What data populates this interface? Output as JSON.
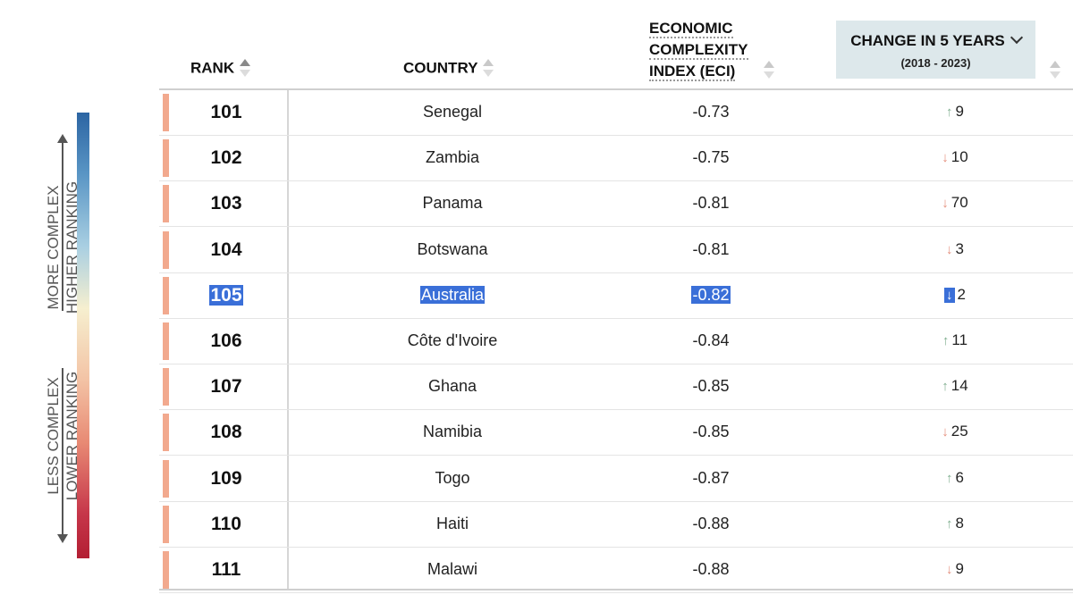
{
  "legend": {
    "top_line1": "MORE COMPLEX",
    "top_line2": "HIGHER RANKING",
    "bottom_line1": "LESS COMPLEX",
    "bottom_line2": "LOWER RANKING"
  },
  "headers": {
    "rank": "RANK",
    "country": "COUNTRY",
    "eci_line1": "ECONOMIC",
    "eci_line2": "COMPLEXITY",
    "eci_line3": "INDEX (ECI)",
    "change_title": "CHANGE IN 5 YEARS",
    "change_sub": "(2018 - 2023)"
  },
  "rows": [
    {
      "rank": "101",
      "country": "Senegal",
      "eci": "-0.73",
      "direction": "up",
      "change": "9"
    },
    {
      "rank": "102",
      "country": "Zambia",
      "eci": "-0.75",
      "direction": "down",
      "change": "10"
    },
    {
      "rank": "103",
      "country": "Panama",
      "eci": "-0.81",
      "direction": "down",
      "change": "70"
    },
    {
      "rank": "104",
      "country": "Botswana",
      "eci": "-0.81",
      "direction": "down",
      "change": "3"
    },
    {
      "rank": "105",
      "country": "Australia",
      "eci": "-0.82",
      "direction": "down",
      "change": "2"
    },
    {
      "rank": "106",
      "country": "Côte d'Ivoire",
      "eci": "-0.84",
      "direction": "up",
      "change": "11"
    },
    {
      "rank": "107",
      "country": "Ghana",
      "eci": "-0.85",
      "direction": "up",
      "change": "14"
    },
    {
      "rank": "108",
      "country": "Namibia",
      "eci": "-0.85",
      "direction": "down",
      "change": "25"
    },
    {
      "rank": "109",
      "country": "Togo",
      "eci": "-0.87",
      "direction": "up",
      "change": "6"
    },
    {
      "rank": "110",
      "country": "Haiti",
      "eci": "-0.88",
      "direction": "up",
      "change": "8"
    },
    {
      "rank": "111",
      "country": "Malawi",
      "eci": "-0.88",
      "direction": "down",
      "change": "9"
    }
  ],
  "selected_row": "105",
  "colors": {
    "header_highlight": "#dde8eb",
    "selection": "#3a6fd8",
    "up_arrow": "#7fae8f",
    "down_arrow": "#e48e7c",
    "rank_swatch": "#f2a98e"
  }
}
